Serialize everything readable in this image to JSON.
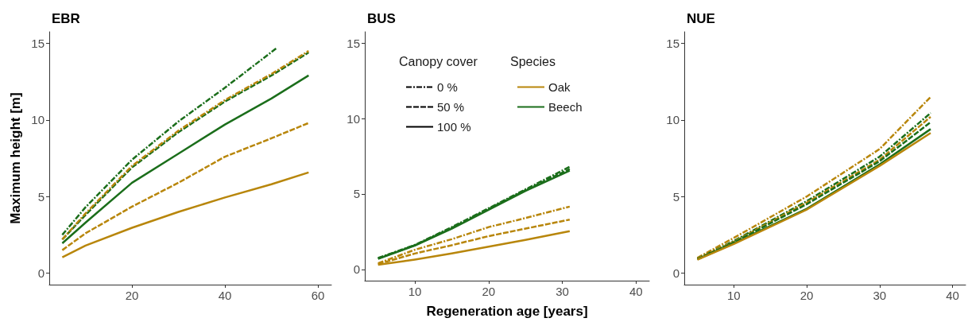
{
  "chart_data": [
    {
      "type": "line",
      "title": "EBR",
      "ylabel": "Maximum height [m]",
      "xlim": [
        2.2,
        62.9
      ],
      "xticks": [
        20,
        40,
        60
      ],
      "ylim": [
        -0.75,
        15.75
      ],
      "yticks": [
        0,
        5,
        10,
        15
      ],
      "grid": false,
      "legend": false,
      "marker": "none",
      "series": [
        {
          "color": "#b8860b",
          "line_style": "dashed",
          "x": [
            5,
            10,
            20,
            30,
            40,
            50,
            58
          ],
          "values": [
            1.5,
            2.6,
            4.34,
            5.9,
            7.6,
            8.8,
            9.8
          ]
        },
        {
          "color": "#b8860b",
          "line_style": "solid",
          "x": [
            5,
            10,
            20,
            30,
            40,
            50,
            58
          ],
          "values": [
            1.03,
            1.8,
            2.96,
            4.0,
            4.94,
            5.8,
            6.57
          ]
        },
        {
          "color": "#1b6e1b",
          "line_style": "dashdot",
          "x": [
            5,
            10,
            20,
            30,
            40,
            51
          ],
          "values": [
            2.5,
            4.3,
            7.4,
            9.9,
            12.1,
            14.66
          ]
        },
        {
          "color": "#1b6e1b",
          "line_style": "dashed",
          "x": [
            5,
            10,
            20,
            30,
            40,
            50,
            58
          ],
          "values": [
            2.2,
            3.8,
            6.9,
            9.2,
            11.2,
            12.9,
            14.4
          ]
        },
        {
          "color": "#1b6e1b",
          "line_style": "solid",
          "x": [
            5,
            10,
            20,
            30,
            40,
            50,
            58
          ],
          "values": [
            1.95,
            3.3,
            5.9,
            7.8,
            9.7,
            11.4,
            12.9
          ]
        },
        {
          "color": "#b8860b",
          "line_style": "dashdot",
          "x": [
            5,
            10,
            20,
            30,
            40,
            50,
            58
          ],
          "values": [
            2.2,
            3.9,
            7.0,
            9.3,
            11.3,
            13.0,
            14.5
          ]
        }
      ]
    },
    {
      "type": "line",
      "title": "BUS",
      "xlabel": "Regeneration age [years]",
      "xlim": [
        3.2,
        41.8
      ],
      "xticks": [
        10,
        20,
        30,
        40
      ],
      "ylim": [
        -0.75,
        15.75
      ],
      "yticks": [
        0,
        5,
        10,
        15
      ],
      "grid": false,
      "legend": "top left",
      "legend_title": [
        "Canopy cover",
        "Species"
      ],
      "marker": "none",
      "series": [
        {
          "color": "#b8860b",
          "line_style": "dashdot",
          "x": [
            5,
            10,
            15,
            20,
            25,
            31
          ],
          "values": [
            0.4,
            1.3,
            2.0,
            2.8,
            3.4,
            4.16
          ]
        },
        {
          "color": "#b8860b",
          "line_style": "dashed",
          "x": [
            5,
            10,
            15,
            20,
            25,
            31
          ],
          "values": [
            0.35,
            1.05,
            1.6,
            2.2,
            2.7,
            3.3
          ]
        },
        {
          "color": "#b8860b",
          "line_style": "solid",
          "x": [
            5,
            10,
            15,
            20,
            25,
            31
          ],
          "values": [
            0.3,
            0.65,
            1.05,
            1.5,
            1.95,
            2.53
          ]
        },
        {
          "color": "#1b6e1b",
          "line_style": "dashdot",
          "x": [
            5,
            10,
            15,
            20,
            25,
            31
          ],
          "values": [
            0.75,
            1.62,
            2.8,
            4.05,
            5.3,
            6.8
          ]
        },
        {
          "color": "#1b6e1b",
          "line_style": "dashed",
          "x": [
            5,
            10,
            15,
            20,
            25,
            31
          ],
          "values": [
            0.72,
            1.6,
            2.75,
            4.0,
            5.25,
            6.65
          ]
        },
        {
          "color": "#1b6e1b",
          "line_style": "solid",
          "x": [
            5,
            10,
            15,
            20,
            25,
            31
          ],
          "values": [
            0.7,
            1.58,
            2.7,
            3.95,
            5.2,
            6.55
          ]
        },
        {
          "name": "0 %",
          "color": "#000000",
          "line_style": "dashdot"
        },
        {
          "name": "50 %",
          "color": "#000000",
          "line_style": "dashed"
        },
        {
          "name": "100 %",
          "color": "#000000",
          "line_style": "solid"
        },
        {
          "name": "Oak",
          "color": "#b8860b"
        },
        {
          "name": "Beech",
          "color": "#1b6e1b"
        }
      ]
    },
    {
      "type": "line",
      "title": "NUE",
      "xlim": [
        3.2,
        41.8
      ],
      "xticks": [
        10,
        20,
        30,
        40
      ],
      "ylim": [
        -0.75,
        15.75
      ],
      "yticks": [
        0,
        5,
        10,
        15
      ],
      "grid": false,
      "legend": false,
      "marker": "none",
      "series": [
        {
          "color": "#b8860b",
          "line_style": "dashdot",
          "x": [
            5,
            10,
            20,
            30,
            37
          ],
          "values": [
            1.0,
            2.3,
            5.0,
            8.1,
            11.5
          ]
        },
        {
          "color": "#1b6e1b",
          "line_style": "dashdot",
          "x": [
            5,
            10,
            20,
            30,
            37
          ],
          "values": [
            0.95,
            2.1,
            4.7,
            7.6,
            10.45
          ]
        },
        {
          "color": "#b8860b",
          "line_style": "dashed",
          "x": [
            5,
            10,
            20,
            30,
            37
          ],
          "values": [
            0.95,
            2.05,
            4.6,
            7.4,
            10.2
          ]
        },
        {
          "color": "#1b6e1b",
          "line_style": "dashed",
          "x": [
            5,
            10,
            20,
            30,
            37
          ],
          "values": [
            0.9,
            2.0,
            4.5,
            7.3,
            9.85
          ]
        },
        {
          "color": "#1b6e1b",
          "line_style": "solid",
          "x": [
            5,
            10,
            20,
            30,
            37
          ],
          "values": [
            0.9,
            1.95,
            4.2,
            7.1,
            9.4
          ]
        },
        {
          "color": "#b8860b",
          "line_style": "solid",
          "x": [
            5,
            10,
            20,
            30,
            37
          ],
          "values": [
            0.88,
            1.9,
            4.15,
            7.0,
            9.15
          ]
        }
      ]
    }
  ]
}
